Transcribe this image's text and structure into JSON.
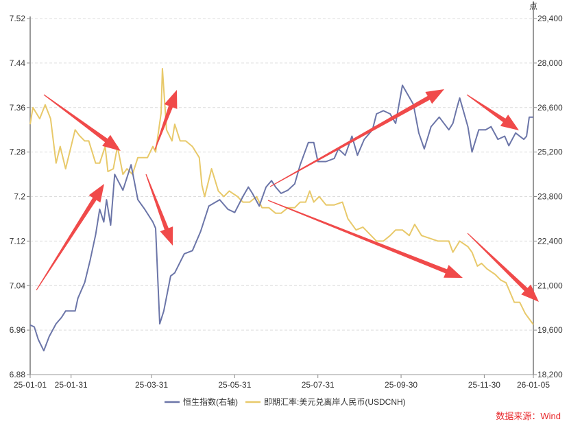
{
  "chart_data": {
    "type": "line",
    "title": "",
    "right_axis_unit": "点",
    "x_ticks": [
      "25-01-01",
      "25-01-31",
      "25-03-31",
      "25-05-31",
      "25-07-31",
      "25-09-30",
      "25-11-30",
      "26-01-05"
    ],
    "x_range": [
      "2025-01-01",
      "2026-01-05"
    ],
    "y_left": {
      "range": [
        6.88,
        7.52
      ],
      "ticks": [
        "6.88",
        "6.96",
        "7.04",
        "7.12",
        "7.2",
        "7.28",
        "7.36",
        "7.44",
        "7.52"
      ]
    },
    "y_right": {
      "range": [
        18200,
        29400
      ],
      "ticks": [
        "18,200",
        "19,600",
        "21,000",
        "22,400",
        "23,800",
        "25,200",
        "26,600",
        "28,000",
        "29,400"
      ]
    },
    "grid": true,
    "legend_position": "bottom",
    "series": [
      {
        "name": "恒生指数(右轴)",
        "axis": "right",
        "color": "#6b75a8",
        "points": [
          [
            "2025-01-01",
            19760
          ],
          [
            "2025-01-04",
            19700
          ],
          [
            "2025-01-07",
            19300
          ],
          [
            "2025-01-11",
            18950
          ],
          [
            "2025-01-15",
            19400
          ],
          [
            "2025-01-20",
            19800
          ],
          [
            "2025-01-24",
            20000
          ],
          [
            "2025-01-27",
            20200
          ],
          [
            "2025-02-03",
            20200
          ],
          [
            "2025-02-05",
            20600
          ],
          [
            "2025-02-10",
            21100
          ],
          [
            "2025-02-14",
            21800
          ],
          [
            "2025-02-18",
            22600
          ],
          [
            "2025-02-21",
            23400
          ],
          [
            "2025-02-24",
            23000
          ],
          [
            "2025-02-26",
            23700
          ],
          [
            "2025-03-01",
            22900
          ],
          [
            "2025-03-04",
            24500
          ],
          [
            "2025-03-10",
            24000
          ],
          [
            "2025-03-16",
            24800
          ],
          [
            "2025-03-21",
            23700
          ],
          [
            "2025-03-26",
            23400
          ],
          [
            "2025-04-01",
            23000
          ],
          [
            "2025-04-03",
            22800
          ],
          [
            "2025-04-06",
            19800
          ],
          [
            "2025-04-09",
            20200
          ],
          [
            "2025-04-14",
            21300
          ],
          [
            "2025-04-17",
            21400
          ],
          [
            "2025-04-24",
            22000
          ],
          [
            "2025-04-30",
            22100
          ],
          [
            "2025-05-06",
            22700
          ],
          [
            "2025-05-12",
            23500
          ],
          [
            "2025-05-20",
            23700
          ],
          [
            "2025-05-26",
            23400
          ],
          [
            "2025-05-31",
            23300
          ],
          [
            "2025-06-06",
            23800
          ],
          [
            "2025-06-10",
            24100
          ],
          [
            "2025-06-13",
            23900
          ],
          [
            "2025-06-18",
            23500
          ],
          [
            "2025-06-23",
            24100
          ],
          [
            "2025-06-27",
            24300
          ],
          [
            "2025-06-30",
            24100
          ],
          [
            "2025-07-04",
            23900
          ],
          [
            "2025-07-09",
            24000
          ],
          [
            "2025-07-14",
            24200
          ],
          [
            "2025-07-18",
            24800
          ],
          [
            "2025-07-24",
            25500
          ],
          [
            "2025-07-28",
            25500
          ],
          [
            "2025-07-31",
            24900
          ],
          [
            "2025-08-06",
            24900
          ],
          [
            "2025-08-12",
            25000
          ],
          [
            "2025-08-15",
            25300
          ],
          [
            "2025-08-20",
            25100
          ],
          [
            "2025-08-25",
            25700
          ],
          [
            "2025-08-29",
            25100
          ],
          [
            "2025-09-03",
            25600
          ],
          [
            "2025-09-09",
            25900
          ],
          [
            "2025-09-12",
            26400
          ],
          [
            "2025-09-17",
            26500
          ],
          [
            "2025-09-22",
            26400
          ],
          [
            "2025-09-26",
            26100
          ],
          [
            "2025-10-01",
            27300
          ],
          [
            "2025-10-09",
            26700
          ],
          [
            "2025-10-13",
            25800
          ],
          [
            "2025-10-17",
            25300
          ],
          [
            "2025-10-22",
            26000
          ],
          [
            "2025-10-28",
            26300
          ],
          [
            "2025-11-04",
            25900
          ],
          [
            "2025-11-07",
            26100
          ],
          [
            "2025-11-10",
            26600
          ],
          [
            "2025-11-12",
            26900
          ],
          [
            "2025-11-18",
            26000
          ],
          [
            "2025-11-21",
            25200
          ],
          [
            "2025-11-26",
            25900
          ],
          [
            "2025-12-01",
            25900
          ],
          [
            "2025-12-05",
            26000
          ],
          [
            "2025-12-10",
            25600
          ],
          [
            "2025-12-15",
            25700
          ],
          [
            "2025-12-18",
            25400
          ],
          [
            "2025-12-23",
            25800
          ],
          [
            "2025-12-29",
            25600
          ],
          [
            "2025-12-31",
            25700
          ],
          [
            "2026-01-02",
            26300
          ],
          [
            "2026-01-05",
            26300
          ]
        ]
      },
      {
        "name": "即期汇率:美元兑离岸人民币(USDCNH)",
        "axis": "left",
        "color": "#e8c96a",
        "points": [
          [
            "2025-01-01",
            7.33
          ],
          [
            "2025-01-03",
            7.36
          ],
          [
            "2025-01-08",
            7.34
          ],
          [
            "2025-01-12",
            7.365
          ],
          [
            "2025-01-16",
            7.34
          ],
          [
            "2025-01-20",
            7.26
          ],
          [
            "2025-01-23",
            7.29
          ],
          [
            "2025-01-27",
            7.25
          ],
          [
            "2025-02-03",
            7.32
          ],
          [
            "2025-02-06",
            7.31
          ],
          [
            "2025-02-10",
            7.3
          ],
          [
            "2025-02-13",
            7.3
          ],
          [
            "2025-02-18",
            7.26
          ],
          [
            "2025-02-21",
            7.26
          ],
          [
            "2025-02-25",
            7.29
          ],
          [
            "2025-02-27",
            7.245
          ],
          [
            "2025-03-03",
            7.25
          ],
          [
            "2025-03-06",
            7.29
          ],
          [
            "2025-03-10",
            7.24
          ],
          [
            "2025-03-13",
            7.25
          ],
          [
            "2025-03-17",
            7.24
          ],
          [
            "2025-03-21",
            7.27
          ],
          [
            "2025-03-25",
            7.27
          ],
          [
            "2025-03-28",
            7.27
          ],
          [
            "2025-04-01",
            7.29
          ],
          [
            "2025-04-03",
            7.28
          ],
          [
            "2025-04-07",
            7.35
          ],
          [
            "2025-04-08",
            7.43
          ],
          [
            "2025-04-11",
            7.32
          ],
          [
            "2025-04-15",
            7.3
          ],
          [
            "2025-04-17",
            7.33
          ],
          [
            "2025-04-21",
            7.3
          ],
          [
            "2025-04-25",
            7.3
          ],
          [
            "2025-04-30",
            7.29
          ],
          [
            "2025-05-05",
            7.27
          ],
          [
            "2025-05-07",
            7.22
          ],
          [
            "2025-05-09",
            7.2
          ],
          [
            "2025-05-14",
            7.25
          ],
          [
            "2025-05-19",
            7.21
          ],
          [
            "2025-05-23",
            7.2
          ],
          [
            "2025-05-27",
            7.21
          ],
          [
            "2025-06-02",
            7.2
          ],
          [
            "2025-06-06",
            7.19
          ],
          [
            "2025-06-11",
            7.19
          ],
          [
            "2025-06-16",
            7.2
          ],
          [
            "2025-06-20",
            7.18
          ],
          [
            "2025-06-25",
            7.18
          ],
          [
            "2025-06-30",
            7.17
          ],
          [
            "2025-07-04",
            7.17
          ],
          [
            "2025-07-09",
            7.18
          ],
          [
            "2025-07-14",
            7.18
          ],
          [
            "2025-07-18",
            7.19
          ],
          [
            "2025-07-22",
            7.19
          ],
          [
            "2025-07-25",
            7.21
          ],
          [
            "2025-07-28",
            7.19
          ],
          [
            "2025-08-01",
            7.2
          ],
          [
            "2025-08-06",
            7.185
          ],
          [
            "2025-08-12",
            7.185
          ],
          [
            "2025-08-18",
            7.19
          ],
          [
            "2025-08-22",
            7.16
          ],
          [
            "2025-08-28",
            7.14
          ],
          [
            "2025-09-02",
            7.145
          ],
          [
            "2025-09-08",
            7.13
          ],
          [
            "2025-09-12",
            7.12
          ],
          [
            "2025-09-17",
            7.12
          ],
          [
            "2025-09-22",
            7.13
          ],
          [
            "2025-09-26",
            7.14
          ],
          [
            "2025-10-01",
            7.14
          ],
          [
            "2025-10-06",
            7.13
          ],
          [
            "2025-10-10",
            7.15
          ],
          [
            "2025-10-15",
            7.13
          ],
          [
            "2025-10-21",
            7.125
          ],
          [
            "2025-10-27",
            7.12
          ],
          [
            "2025-11-04",
            7.12
          ],
          [
            "2025-11-07",
            7.1
          ],
          [
            "2025-11-12",
            7.12
          ],
          [
            "2025-11-18",
            7.11
          ],
          [
            "2025-11-21",
            7.1
          ],
          [
            "2025-11-25",
            7.075
          ],
          [
            "2025-11-28",
            7.08
          ],
          [
            "2025-12-02",
            7.07
          ],
          [
            "2025-12-08",
            7.06
          ],
          [
            "2025-12-12",
            7.05
          ],
          [
            "2025-12-16",
            7.045
          ],
          [
            "2025-12-22",
            7.01
          ],
          [
            "2025-12-26",
            7.01
          ],
          [
            "2025-12-30",
            6.99
          ],
          [
            "2026-01-02",
            6.98
          ],
          [
            "2026-01-05",
            6.97
          ]
        ]
      }
    ],
    "annotation_color": "#f04a4a",
    "source": "数据来源：Wind"
  }
}
